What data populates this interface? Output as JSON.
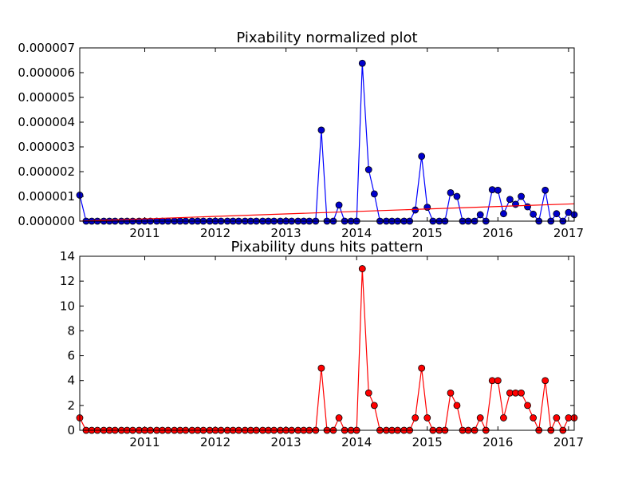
{
  "figure": {
    "background": "#ffffff"
  },
  "chart_data": [
    {
      "type": "line",
      "title": "Pixability normalized plot",
      "xlabel": "",
      "ylabel": "",
      "xlim": [
        2010.08,
        2017.08
      ],
      "ylim": [
        0,
        7e-06
      ],
      "yticks": [
        "0.000000",
        "0.000001",
        "0.000002",
        "0.000003",
        "0.000004",
        "0.000005",
        "0.000006",
        "0.000007"
      ],
      "xticks": [
        "2011",
        "2012",
        "2013",
        "2014",
        "2015",
        "2016",
        "2017"
      ],
      "grid": false,
      "series": [
        {
          "style": "line-markers",
          "color": "#0000ff",
          "marker_color": "#0000cc",
          "x": [
            2010.08,
            2010.17,
            2010.25,
            2010.33,
            2010.42,
            2010.5,
            2010.58,
            2010.67,
            2010.75,
            2010.83,
            2010.92,
            2011.0,
            2011.08,
            2011.17,
            2011.25,
            2011.33,
            2011.42,
            2011.5,
            2011.58,
            2011.67,
            2011.75,
            2011.83,
            2011.92,
            2012.0,
            2012.08,
            2012.17,
            2012.25,
            2012.33,
            2012.42,
            2012.5,
            2012.58,
            2012.67,
            2012.75,
            2012.83,
            2012.92,
            2013.0,
            2013.08,
            2013.17,
            2013.25,
            2013.33,
            2013.42,
            2013.5,
            2013.58,
            2013.67,
            2013.75,
            2013.83,
            2013.92,
            2014.0,
            2014.08,
            2014.17,
            2014.25,
            2014.33,
            2014.42,
            2014.5,
            2014.58,
            2014.67,
            2014.75,
            2014.83,
            2014.92,
            2015.0,
            2015.08,
            2015.17,
            2015.25,
            2015.33,
            2015.42,
            2015.5,
            2015.58,
            2015.67,
            2015.75,
            2015.83,
            2015.92,
            2016.0,
            2016.08,
            2016.17,
            2016.25,
            2016.33,
            2016.42,
            2016.5,
            2016.58,
            2016.67,
            2016.75,
            2016.83,
            2016.92,
            2017.0,
            2017.08
          ],
          "y": [
            1.05e-06,
            0,
            0,
            0,
            0,
            0,
            0,
            0,
            0,
            0,
            0,
            0,
            0,
            0,
            0,
            0,
            0,
            0,
            0,
            0,
            0,
            0,
            0,
            0,
            0,
            0,
            0,
            0,
            0,
            0,
            0,
            0,
            0,
            0,
            0,
            0,
            0,
            0,
            0,
            0,
            0,
            3.68e-06,
            0,
            0,
            6.5e-07,
            0,
            0,
            0,
            6.38e-06,
            2.08e-06,
            1.1e-06,
            0,
            0,
            0,
            0,
            0,
            0,
            4.5e-07,
            2.62e-06,
            5.6e-07,
            0,
            0,
            0,
            1.15e-06,
            1e-06,
            0,
            0,
            0,
            2.6e-07,
            0,
            1.27e-06,
            1.25e-06,
            3e-07,
            8.8e-07,
            6.8e-07,
            1e-06,
            5.8e-07,
            2.8e-07,
            0,
            1.25e-06,
            0,
            3e-07,
            0,
            3.5e-07,
            2.6e-07
          ]
        },
        {
          "style": "trend-line",
          "color": "#ff0000",
          "x": [
            2010.08,
            2017.08
          ],
          "y": [
            0,
            7e-07
          ]
        }
      ]
    },
    {
      "type": "line",
      "title": "Pixability duns hits pattern",
      "xlabel": "",
      "ylabel": "",
      "xlim": [
        2010.08,
        2017.08
      ],
      "ylim": [
        0,
        14
      ],
      "yticks": [
        "0",
        "2",
        "4",
        "6",
        "8",
        "10",
        "12",
        "14"
      ],
      "xticks": [
        "2011",
        "2012",
        "2013",
        "2014",
        "2015",
        "2016",
        "2017"
      ],
      "grid": false,
      "series": [
        {
          "style": "line-markers",
          "color": "#ff0000",
          "marker_color": "#ff0000",
          "x": [
            2010.08,
            2010.17,
            2010.25,
            2010.33,
            2010.42,
            2010.5,
            2010.58,
            2010.67,
            2010.75,
            2010.83,
            2010.92,
            2011.0,
            2011.08,
            2011.17,
            2011.25,
            2011.33,
            2011.42,
            2011.5,
            2011.58,
            2011.67,
            2011.75,
            2011.83,
            2011.92,
            2012.0,
            2012.08,
            2012.17,
            2012.25,
            2012.33,
            2012.42,
            2012.5,
            2012.58,
            2012.67,
            2012.75,
            2012.83,
            2012.92,
            2013.0,
            2013.08,
            2013.17,
            2013.25,
            2013.33,
            2013.42,
            2013.5,
            2013.58,
            2013.67,
            2013.75,
            2013.83,
            2013.92,
            2014.0,
            2014.08,
            2014.17,
            2014.25,
            2014.33,
            2014.42,
            2014.5,
            2014.58,
            2014.67,
            2014.75,
            2014.83,
            2014.92,
            2015.0,
            2015.08,
            2015.17,
            2015.25,
            2015.33,
            2015.42,
            2015.5,
            2015.58,
            2015.67,
            2015.75,
            2015.83,
            2015.92,
            2016.0,
            2016.08,
            2016.17,
            2016.25,
            2016.33,
            2016.42,
            2016.5,
            2016.58,
            2016.67,
            2016.75,
            2016.83,
            2016.92,
            2017.0,
            2017.08
          ],
          "y": [
            1,
            0,
            0,
            0,
            0,
            0,
            0,
            0,
            0,
            0,
            0,
            0,
            0,
            0,
            0,
            0,
            0,
            0,
            0,
            0,
            0,
            0,
            0,
            0,
            0,
            0,
            0,
            0,
            0,
            0,
            0,
            0,
            0,
            0,
            0,
            0,
            0,
            0,
            0,
            0,
            0,
            5,
            0,
            0,
            1,
            0,
            0,
            0,
            13,
            3,
            2,
            0,
            0,
            0,
            0,
            0,
            0,
            1,
            5,
            1,
            0,
            0,
            0,
            3,
            2,
            0,
            0,
            0,
            1,
            0,
            4,
            4,
            1,
            3,
            3,
            3,
            2,
            1,
            0,
            4,
            0,
            1,
            0,
            1,
            1
          ]
        }
      ]
    }
  ]
}
